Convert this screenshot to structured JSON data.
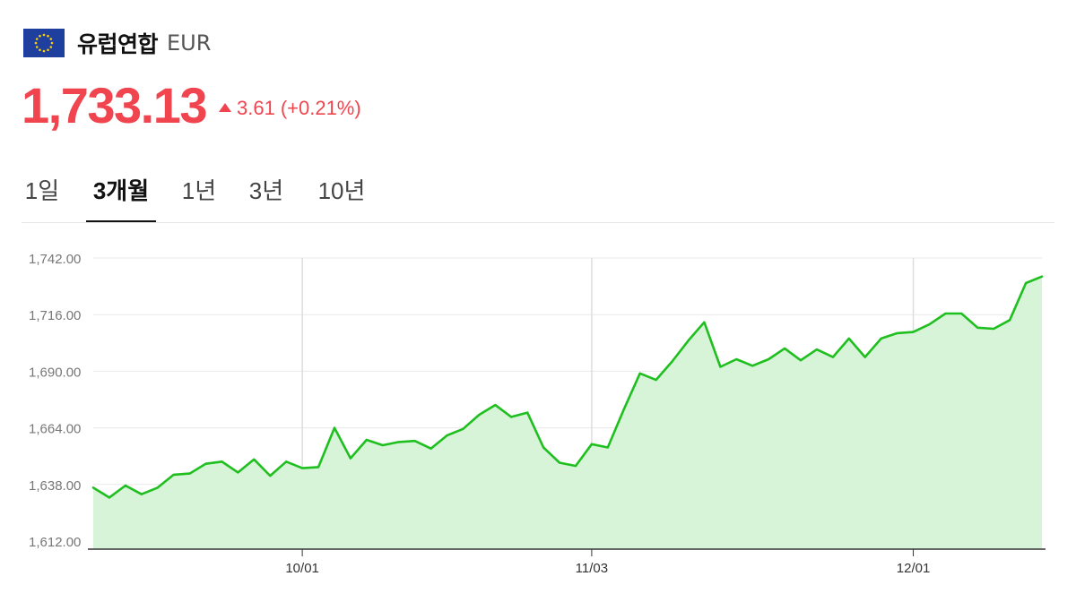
{
  "header": {
    "flag_icon": "eu-flag-icon",
    "country": "유럽연합",
    "currency": "EUR"
  },
  "quote": {
    "price": "1,733.13",
    "change": "3.61",
    "change_pct": "(+0.21%)",
    "direction_icon": "triangle-up-icon",
    "color": "#f0454f"
  },
  "tabs": [
    {
      "label": "1일",
      "active": false
    },
    {
      "label": "3개월",
      "active": true
    },
    {
      "label": "1년",
      "active": false
    },
    {
      "label": "3년",
      "active": false
    },
    {
      "label": "10년",
      "active": false
    }
  ],
  "chart_data": {
    "type": "area",
    "line_color": "#1fbf1f",
    "fill_color": "#d8f4d8",
    "grid": true,
    "ylim": [
      1612,
      1742
    ],
    "y_ticks": [
      "1,742.00",
      "1,716.00",
      "1,690.00",
      "1,664.00",
      "1,638.00",
      "1,612.00"
    ],
    "y_tick_values": [
      1742,
      1716,
      1690,
      1664,
      1638,
      1612
    ],
    "x_ticks": [
      {
        "label": "10/01",
        "index": 13
      },
      {
        "label": "11/03",
        "index": 31
      },
      {
        "label": "12/01",
        "index": 51
      }
    ],
    "series": [
      {
        "values": [
          1636.5,
          1632.0,
          1637.5,
          1633.5,
          1636.5,
          1642.5,
          1643.0,
          1647.5,
          1648.5,
          1643.5,
          1649.5,
          1642.0,
          1648.5,
          1645.5,
          1646.0,
          1664.0,
          1650.0,
          1658.5,
          1656.0,
          1657.5,
          1658.0,
          1654.5,
          1660.5,
          1663.5,
          1670.0,
          1674.5,
          1669.0,
          1671.0,
          1655.0,
          1648.0,
          1646.5,
          1656.5,
          1655.0,
          1672.5,
          1689.0,
          1686.0,
          1694.5,
          1704.0,
          1712.5,
          1692.0,
          1695.5,
          1692.5,
          1695.5,
          1700.5,
          1695.0,
          1700.0,
          1696.5,
          1705.0,
          1696.5,
          1705.0,
          1707.5,
          1708.0,
          1711.5,
          1716.5,
          1716.5,
          1710.0,
          1709.5,
          1713.5,
          1730.5,
          1733.5
        ]
      }
    ]
  }
}
